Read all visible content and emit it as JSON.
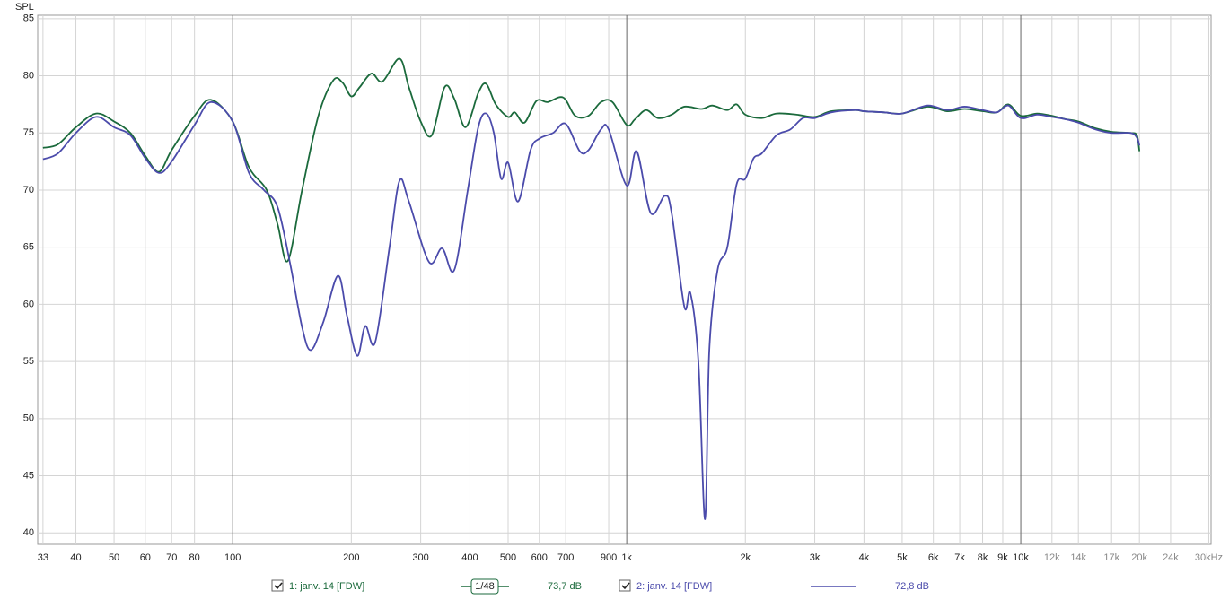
{
  "chart_data": {
    "type": "line",
    "y_label": "SPL",
    "log_x": true,
    "grid": true,
    "xlim": [
      32,
      30400
    ],
    "ylim": [
      39,
      85.3
    ],
    "yticks": [
      40,
      45,
      50,
      55,
      60,
      65,
      70,
      75,
      80,
      85
    ],
    "xticks": [
      33,
      40,
      50,
      60,
      70,
      80,
      100,
      200,
      300,
      400,
      500,
      600,
      700,
      900,
      {
        "value": 1000,
        "label": "1k"
      },
      {
        "value": 2000,
        "label": "2k"
      },
      {
        "value": 3000,
        "label": "3k"
      },
      {
        "value": 4000,
        "label": "4k"
      },
      {
        "value": 5000,
        "label": "5k"
      },
      {
        "value": 6000,
        "label": "6k"
      },
      {
        "value": 7000,
        "label": "7k"
      },
      {
        "value": 8000,
        "label": "8k"
      },
      {
        "value": 9000,
        "label": "9k"
      },
      {
        "value": 10000,
        "label": "10k"
      },
      {
        "value": 12000,
        "label": "12k"
      },
      {
        "value": 14000,
        "label": "14k"
      },
      {
        "value": 17000,
        "label": "17k"
      },
      {
        "value": 20000,
        "label": "20k"
      },
      {
        "value": 24000,
        "label": "24k"
      },
      {
        "value": 30000,
        "label": "30kHz"
      }
    ],
    "smoothing": "1/48",
    "series": [
      {
        "name": "1: janv. 14 [FDW]",
        "color": "#1b6a3c",
        "level_label": "73,7 dB",
        "x": [
          33,
          36,
          40,
          45,
          50,
          55,
          60,
          65,
          70,
          80,
          88,
          100,
          110,
          122,
          130,
          138,
          150,
          165,
          180,
          190,
          200,
          210,
          225,
          240,
          265,
          280,
          300,
          320,
          345,
          365,
          390,
          420,
          440,
          465,
          500,
          520,
          550,
          590,
          630,
          690,
          740,
          800,
          860,
          920,
          1000,
          1050,
          1120,
          1200,
          1300,
          1400,
          1550,
          1650,
          1800,
          1900,
          2000,
          2200,
          2400,
          2700,
          3000,
          3300,
          3800,
          4000,
          4500,
          5000,
          5800,
          6500,
          7200,
          8000,
          8700,
          9300,
          10000,
          11000,
          12000,
          13000,
          14000,
          15500,
          17000,
          19000,
          19700,
          20000
        ],
        "values": [
          73.7,
          74.0,
          75.5,
          76.7,
          76.0,
          75.0,
          73.0,
          71.6,
          73.5,
          76.5,
          77.9,
          76.0,
          72.0,
          70.0,
          67.0,
          63.8,
          70.0,
          76.5,
          79.6,
          79.4,
          78.2,
          79.0,
          80.2,
          79.5,
          81.5,
          79.0,
          76.0,
          74.8,
          79.0,
          78.0,
          75.5,
          78.5,
          79.3,
          77.5,
          76.4,
          76.8,
          75.9,
          77.8,
          77.7,
          78.1,
          76.5,
          76.5,
          77.7,
          77.7,
          75.7,
          76.2,
          77.0,
          76.3,
          76.6,
          77.3,
          77.1,
          77.4,
          77.0,
          77.5,
          76.6,
          76.3,
          76.7,
          76.6,
          76.4,
          76.9,
          77.0,
          76.9,
          76.8,
          76.7,
          77.3,
          76.9,
          77.1,
          76.9,
          76.8,
          77.5,
          76.5,
          76.7,
          76.5,
          76.2,
          76.0,
          75.4,
          75.1,
          75.0,
          74.8,
          73.4
        ]
      },
      {
        "name": "2: janv. 14 [FDW]",
        "color": "#4b4bab",
        "level_label": "72,8 dB",
        "x": [
          33,
          36,
          40,
          45,
          50,
          55,
          60,
          65,
          70,
          80,
          88,
          100,
          110,
          120,
          130,
          140,
          150,
          158,
          170,
          185,
          195,
          207,
          217,
          230,
          250,
          265,
          280,
          315,
          340,
          365,
          395,
          420,
          440,
          460,
          480,
          500,
          530,
          570,
          600,
          650,
          700,
          760,
          800,
          860,
          900,
          1000,
          1060,
          1150,
          1250,
          1300,
          1400,
          1450,
          1520,
          1580,
          1620,
          1700,
          1800,
          1900,
          2000,
          2100,
          2200,
          2400,
          2600,
          2800,
          3000,
          3300,
          3800,
          4000,
          4500,
          5000,
          5800,
          6500,
          7200,
          8000,
          8700,
          9300,
          10000,
          11000,
          12000,
          13000,
          14000,
          15500,
          17000,
          19000,
          19700,
          20000
        ],
        "values": [
          72.7,
          73.2,
          75.0,
          76.4,
          75.5,
          74.8,
          72.8,
          71.5,
          72.5,
          75.7,
          77.7,
          76.0,
          71.5,
          70.0,
          68.5,
          63.5,
          58.0,
          56.0,
          58.5,
          62.5,
          59.0,
          55.5,
          58.1,
          56.7,
          65.0,
          70.8,
          69.0,
          63.7,
          64.9,
          63.0,
          70.0,
          75.5,
          76.7,
          75.0,
          71.0,
          72.4,
          69.0,
          73.5,
          74.5,
          75.0,
          75.8,
          73.4,
          73.5,
          75.3,
          75.3,
          70.4,
          73.4,
          68.0,
          69.5,
          68.0,
          59.8,
          61.0,
          55.0,
          41.2,
          56.0,
          63.0,
          65.0,
          70.5,
          71.0,
          72.8,
          73.2,
          74.8,
          75.3,
          76.3,
          76.3,
          76.8,
          77.0,
          76.9,
          76.8,
          76.7,
          77.4,
          77.0,
          77.3,
          77.0,
          76.8,
          77.4,
          76.3,
          76.6,
          76.4,
          76.2,
          75.9,
          75.3,
          75.0,
          75.0,
          74.6,
          73.9
        ]
      }
    ]
  }
}
